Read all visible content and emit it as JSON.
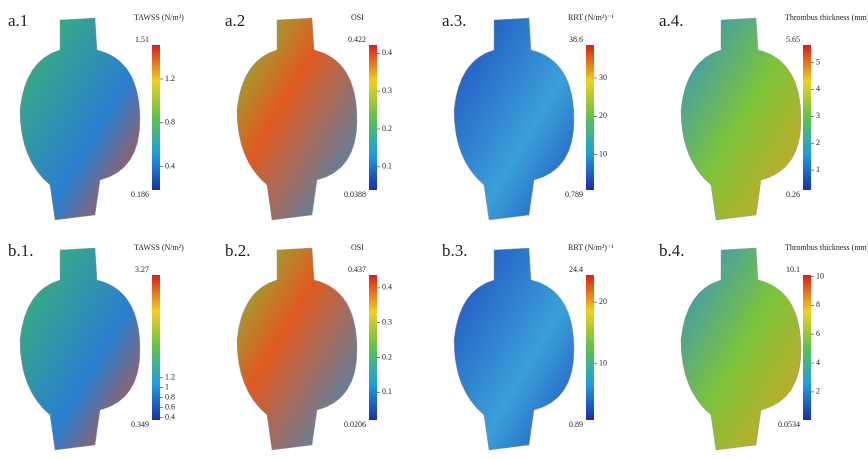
{
  "panels": [
    {
      "label": "a.1",
      "colorbar": {
        "title": "TAWSS (N/m²)",
        "max": 1.51,
        "min": 0.186,
        "ticks": [
          1.2,
          0.8,
          0.4
        ]
      }
    },
    {
      "label": "a.2",
      "colorbar": {
        "title": "OSI",
        "max": 0.422,
        "min": 0.0388,
        "ticks": [
          0.4,
          0.3,
          0.2,
          0.1
        ]
      }
    },
    {
      "label": "a.3.",
      "colorbar": {
        "title": "RRT (N/m²)⁻¹",
        "max": 38.6,
        "min": 0.789,
        "ticks": [
          30,
          20,
          10
        ]
      }
    },
    {
      "label": "a.4.",
      "colorbar": {
        "title": "Thrombus thickness (mm)",
        "max": 5.65,
        "min": 0.26,
        "ticks": [
          5,
          4,
          3,
          2,
          1
        ]
      }
    },
    {
      "label": "b.1.",
      "colorbar": {
        "title": "TAWSS (N/m²)",
        "max": 3.27,
        "min": 0.349,
        "ticks": [
          1.2,
          1,
          0.8,
          0.6,
          0.4
        ]
      }
    },
    {
      "label": "b.2.",
      "colorbar": {
        "title": "OSI",
        "max": 0.437,
        "min": 0.0206,
        "ticks": [
          0.4,
          0.3,
          0.2,
          0.1
        ]
      }
    },
    {
      "label": "b.3.",
      "colorbar": {
        "title": "RRT (N/m²)⁻¹",
        "max": 24.4,
        "min": 0.89,
        "ticks": [
          20,
          10
        ]
      }
    },
    {
      "label": "b.4.",
      "colorbar": {
        "title": "Thrombus thickness (mm)",
        "max": 10.1,
        "min": 0.0534,
        "ticks": [
          10,
          8,
          6,
          4,
          2
        ]
      }
    }
  ]
}
